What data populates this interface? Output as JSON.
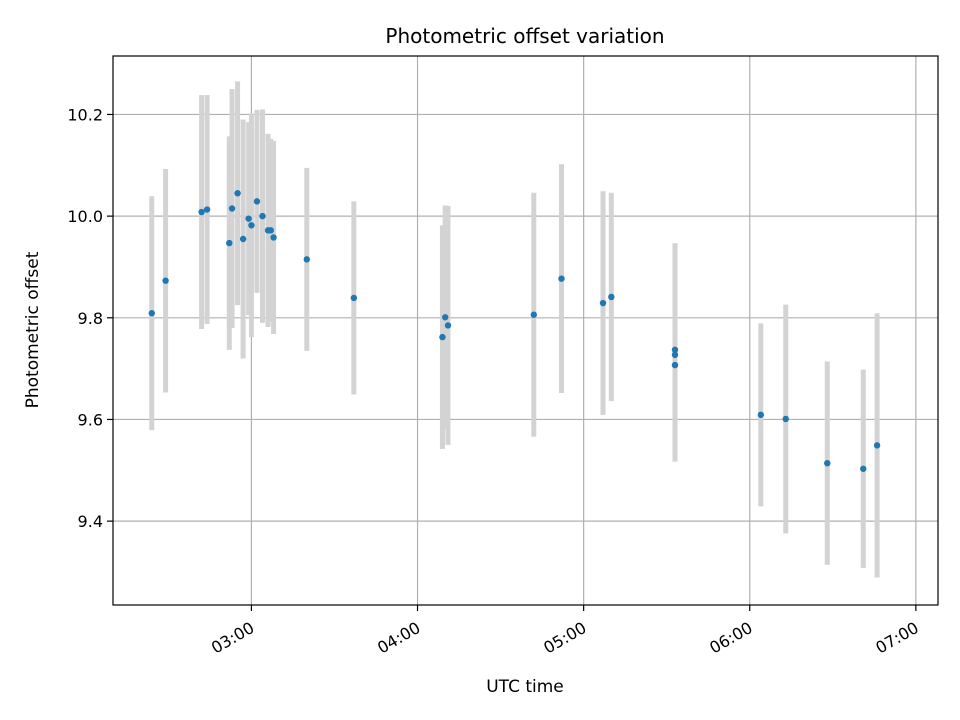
{
  "chart_data": {
    "type": "scatter",
    "title": "Photometric offset variation",
    "xlabel": "UTC time",
    "ylabel": "Photometric offset",
    "x_unit": "time of day (HH:MM)",
    "xlim": [
      "02:10",
      "07:08"
    ],
    "ylim": [
      9.235,
      10.315
    ],
    "x_ticks": [
      "03:00",
      "04:00",
      "05:00",
      "06:00",
      "07:00"
    ],
    "y_ticks": [
      9.4,
      9.6,
      9.8,
      10.0,
      10.2
    ],
    "y_tick_labels": [
      "9.4",
      "9.6",
      "9.8",
      "10.0",
      "10.2"
    ],
    "grid": true,
    "legend": "none",
    "colors": {
      "point": "#1f77b4",
      "errorbar": "#d3d3d3",
      "grid": "#b0b0b0",
      "axes": "#000000"
    },
    "series": [
      {
        "points": [
          {
            "x": "02:24",
            "y": 9.809,
            "err": 0.23
          },
          {
            "x": "02:29",
            "y": 9.873,
            "err": 0.22
          },
          {
            "x": "02:42",
            "y": 10.008,
            "err": 0.23
          },
          {
            "x": "02:44",
            "y": 10.013,
            "err": 0.225
          },
          {
            "x": "02:52",
            "y": 9.947,
            "err": 0.21
          },
          {
            "x": "02:53",
            "y": 10.015,
            "err": 0.235
          },
          {
            "x": "02:55",
            "y": 10.045,
            "err": 0.22
          },
          {
            "x": "02:57",
            "y": 9.955,
            "err": 0.235
          },
          {
            "x": "02:59",
            "y": 9.995,
            "err": 0.19
          },
          {
            "x": "03:00",
            "y": 9.982,
            "err": 0.22
          },
          {
            "x": "03:02",
            "y": 10.029,
            "err": 0.18
          },
          {
            "x": "03:04",
            "y": 10.0,
            "err": 0.21
          },
          {
            "x": "03:06",
            "y": 9.972,
            "err": 0.19
          },
          {
            "x": "03:07",
            "y": 9.972,
            "err": 0.18
          },
          {
            "x": "03:08",
            "y": 9.958,
            "err": 0.19
          },
          {
            "x": "03:20",
            "y": 9.915,
            "err": 0.18
          },
          {
            "x": "03:37",
            "y": 9.839,
            "err": 0.19
          },
          {
            "x": "04:09",
            "y": 9.762,
            "err": 0.22
          },
          {
            "x": "04:10",
            "y": 9.801,
            "err": 0.22
          },
          {
            "x": "04:11",
            "y": 9.785,
            "err": 0.235
          },
          {
            "x": "04:42",
            "y": 9.806,
            "err": 0.24
          },
          {
            "x": "04:52",
            "y": 9.877,
            "err": 0.225
          },
          {
            "x": "05:07",
            "y": 9.829,
            "err": 0.22
          },
          {
            "x": "05:10",
            "y": 9.841,
            "err": 0.205
          },
          {
            "x": "05:33",
            "y": 9.737,
            "err": 0.21
          },
          {
            "x": "05:33",
            "y": 9.727,
            "err": 0.205
          },
          {
            "x": "05:33",
            "y": 9.707,
            "err": 0.19
          },
          {
            "x": "06:04",
            "y": 9.609,
            "err": 0.18
          },
          {
            "x": "06:13",
            "y": 9.601,
            "err": 0.225
          },
          {
            "x": "06:28",
            "y": 9.514,
            "err": 0.2
          },
          {
            "x": "06:41",
            "y": 9.503,
            "err": 0.195
          },
          {
            "x": "06:46",
            "y": 9.549,
            "err": 0.26
          }
        ]
      }
    ]
  }
}
